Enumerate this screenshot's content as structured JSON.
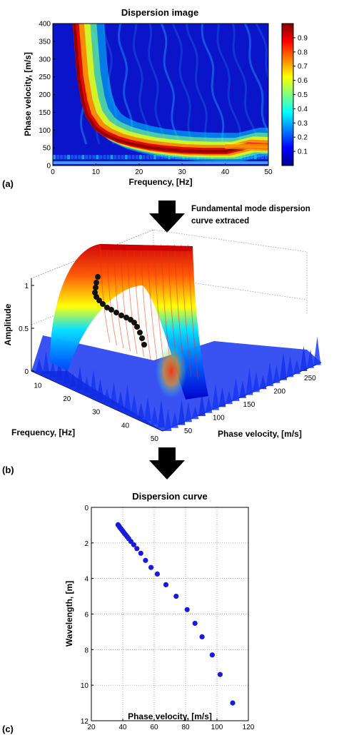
{
  "panels": {
    "a": {
      "label": "(a)",
      "chart_data": {
        "type": "heatmap",
        "title": "Dispersion image",
        "xlabel": "Frequency, [Hz]",
        "ylabel": "Phase velocity, [m/s]",
        "xlim": [
          0,
          50
        ],
        "ylim": [
          0,
          400
        ],
        "xticks": [
          0,
          10,
          20,
          30,
          40,
          50
        ],
        "yticks": [
          0,
          50,
          100,
          150,
          200,
          250,
          300,
          350,
          400
        ],
        "colorbar": {
          "ticks": [
            "0.1",
            "0.2",
            "0.3",
            "0.4",
            "0.5",
            "0.6",
            "0.7",
            "0.8",
            "0.9"
          ],
          "range": [
            0,
            1
          ],
          "colormap": "jet"
        },
        "ridge": {
          "frequency": [
            5,
            6,
            7,
            8,
            10,
            12,
            15,
            18,
            22,
            26,
            30,
            35,
            40,
            45,
            50
          ],
          "phase_velocity": [
            400,
            250,
            180,
            140,
            105,
            88,
            72,
            62,
            52,
            46,
            42,
            40,
            40,
            55,
            52
          ]
        }
      }
    },
    "arrow1": {
      "caption_line1": "Fundamental mode dispersion",
      "caption_line2": "curve extraced"
    },
    "b": {
      "label": "(b)",
      "chart_data": {
        "type": "surface3d",
        "xlabel": "Frequency, [Hz]",
        "ylabel": "Phase velocity, [m/s]",
        "zlabel": "Amplitude",
        "freq_ticks": [
          "10",
          "20",
          "30",
          "40",
          "50"
        ],
        "vel_ticks": [
          "50",
          "100",
          "150",
          "200",
          "250"
        ],
        "amp_ticks": [
          "0",
          "0.5",
          "1"
        ],
        "zlim": [
          0,
          1
        ],
        "picked_curve_note": "black markers along the amplitude maximum"
      }
    },
    "c": {
      "label": "(c)",
      "chart_data": {
        "type": "scatter",
        "title": "Dispersion curve",
        "xlabel": "Phase velocity, [m/s]",
        "ylabel": "Wavelength, [m]",
        "xlim": [
          20,
          120
        ],
        "ylim": [
          0,
          12
        ],
        "y_reversed": true,
        "xticks": [
          20,
          40,
          60,
          80,
          100,
          120
        ],
        "yticks": [
          0,
          2,
          4,
          6,
          8,
          10,
          12
        ],
        "marker_color": "#1a1adb",
        "points": {
          "x": [
            37.0,
            37.6,
            38.2,
            38.9,
            39.6,
            40.3,
            41.1,
            41.9,
            42.8,
            43.8,
            45.2,
            47.0,
            49.0,
            51.5,
            54.5,
            58.0,
            62.0,
            67.5,
            74.0,
            81.0,
            86.0,
            90.5,
            97.0,
            102.0,
            110.0
          ],
          "y": [
            0.98,
            1.05,
            1.13,
            1.21,
            1.29,
            1.37,
            1.46,
            1.55,
            1.65,
            1.76,
            1.92,
            2.1,
            2.32,
            2.58,
            2.98,
            3.38,
            3.75,
            4.35,
            5.0,
            5.75,
            6.52,
            7.28,
            8.3,
            9.4,
            11.0
          ]
        }
      }
    }
  }
}
